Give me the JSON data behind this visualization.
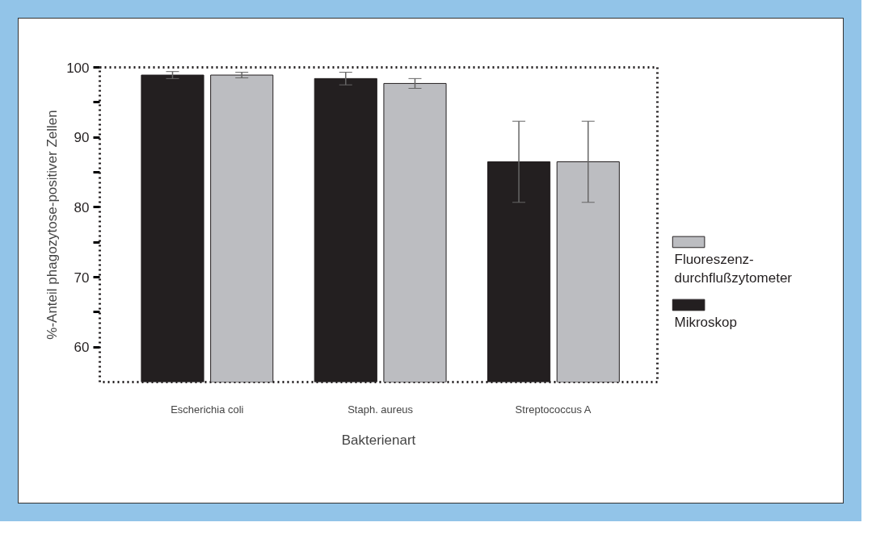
{
  "chart_data": {
    "type": "bar",
    "xlabel": "Bakterienart",
    "ylabel": "%-Anteil phagozytose-positiver Zellen",
    "categories": [
      "Escherichia coli",
      "Staph. aureus",
      "Streptococcus A"
    ],
    "series": [
      {
        "name": "Mikroskop",
        "color": "#231f20",
        "values": [
          98.9,
          98.4,
          86.5
        ],
        "errors": [
          0.5,
          0.9,
          5.8
        ]
      },
      {
        "name": "Fluoreszenz-\ndurchflußzytometer",
        "color": "#bcbdc1",
        "values": [
          98.9,
          97.7,
          86.5
        ],
        "errors": [
          0.4,
          0.7,
          5.8
        ]
      }
    ],
    "ylim": [
      55,
      100
    ],
    "yticks": [
      60,
      {
        "value": 65,
        "label": null
      },
      70,
      {
        "value": 75,
        "label": null
      },
      80,
      {
        "value": 85,
        "label": null
      },
      90,
      {
        "value": 95,
        "label": null
      },
      100
    ],
    "grid": false,
    "legend": "right"
  }
}
